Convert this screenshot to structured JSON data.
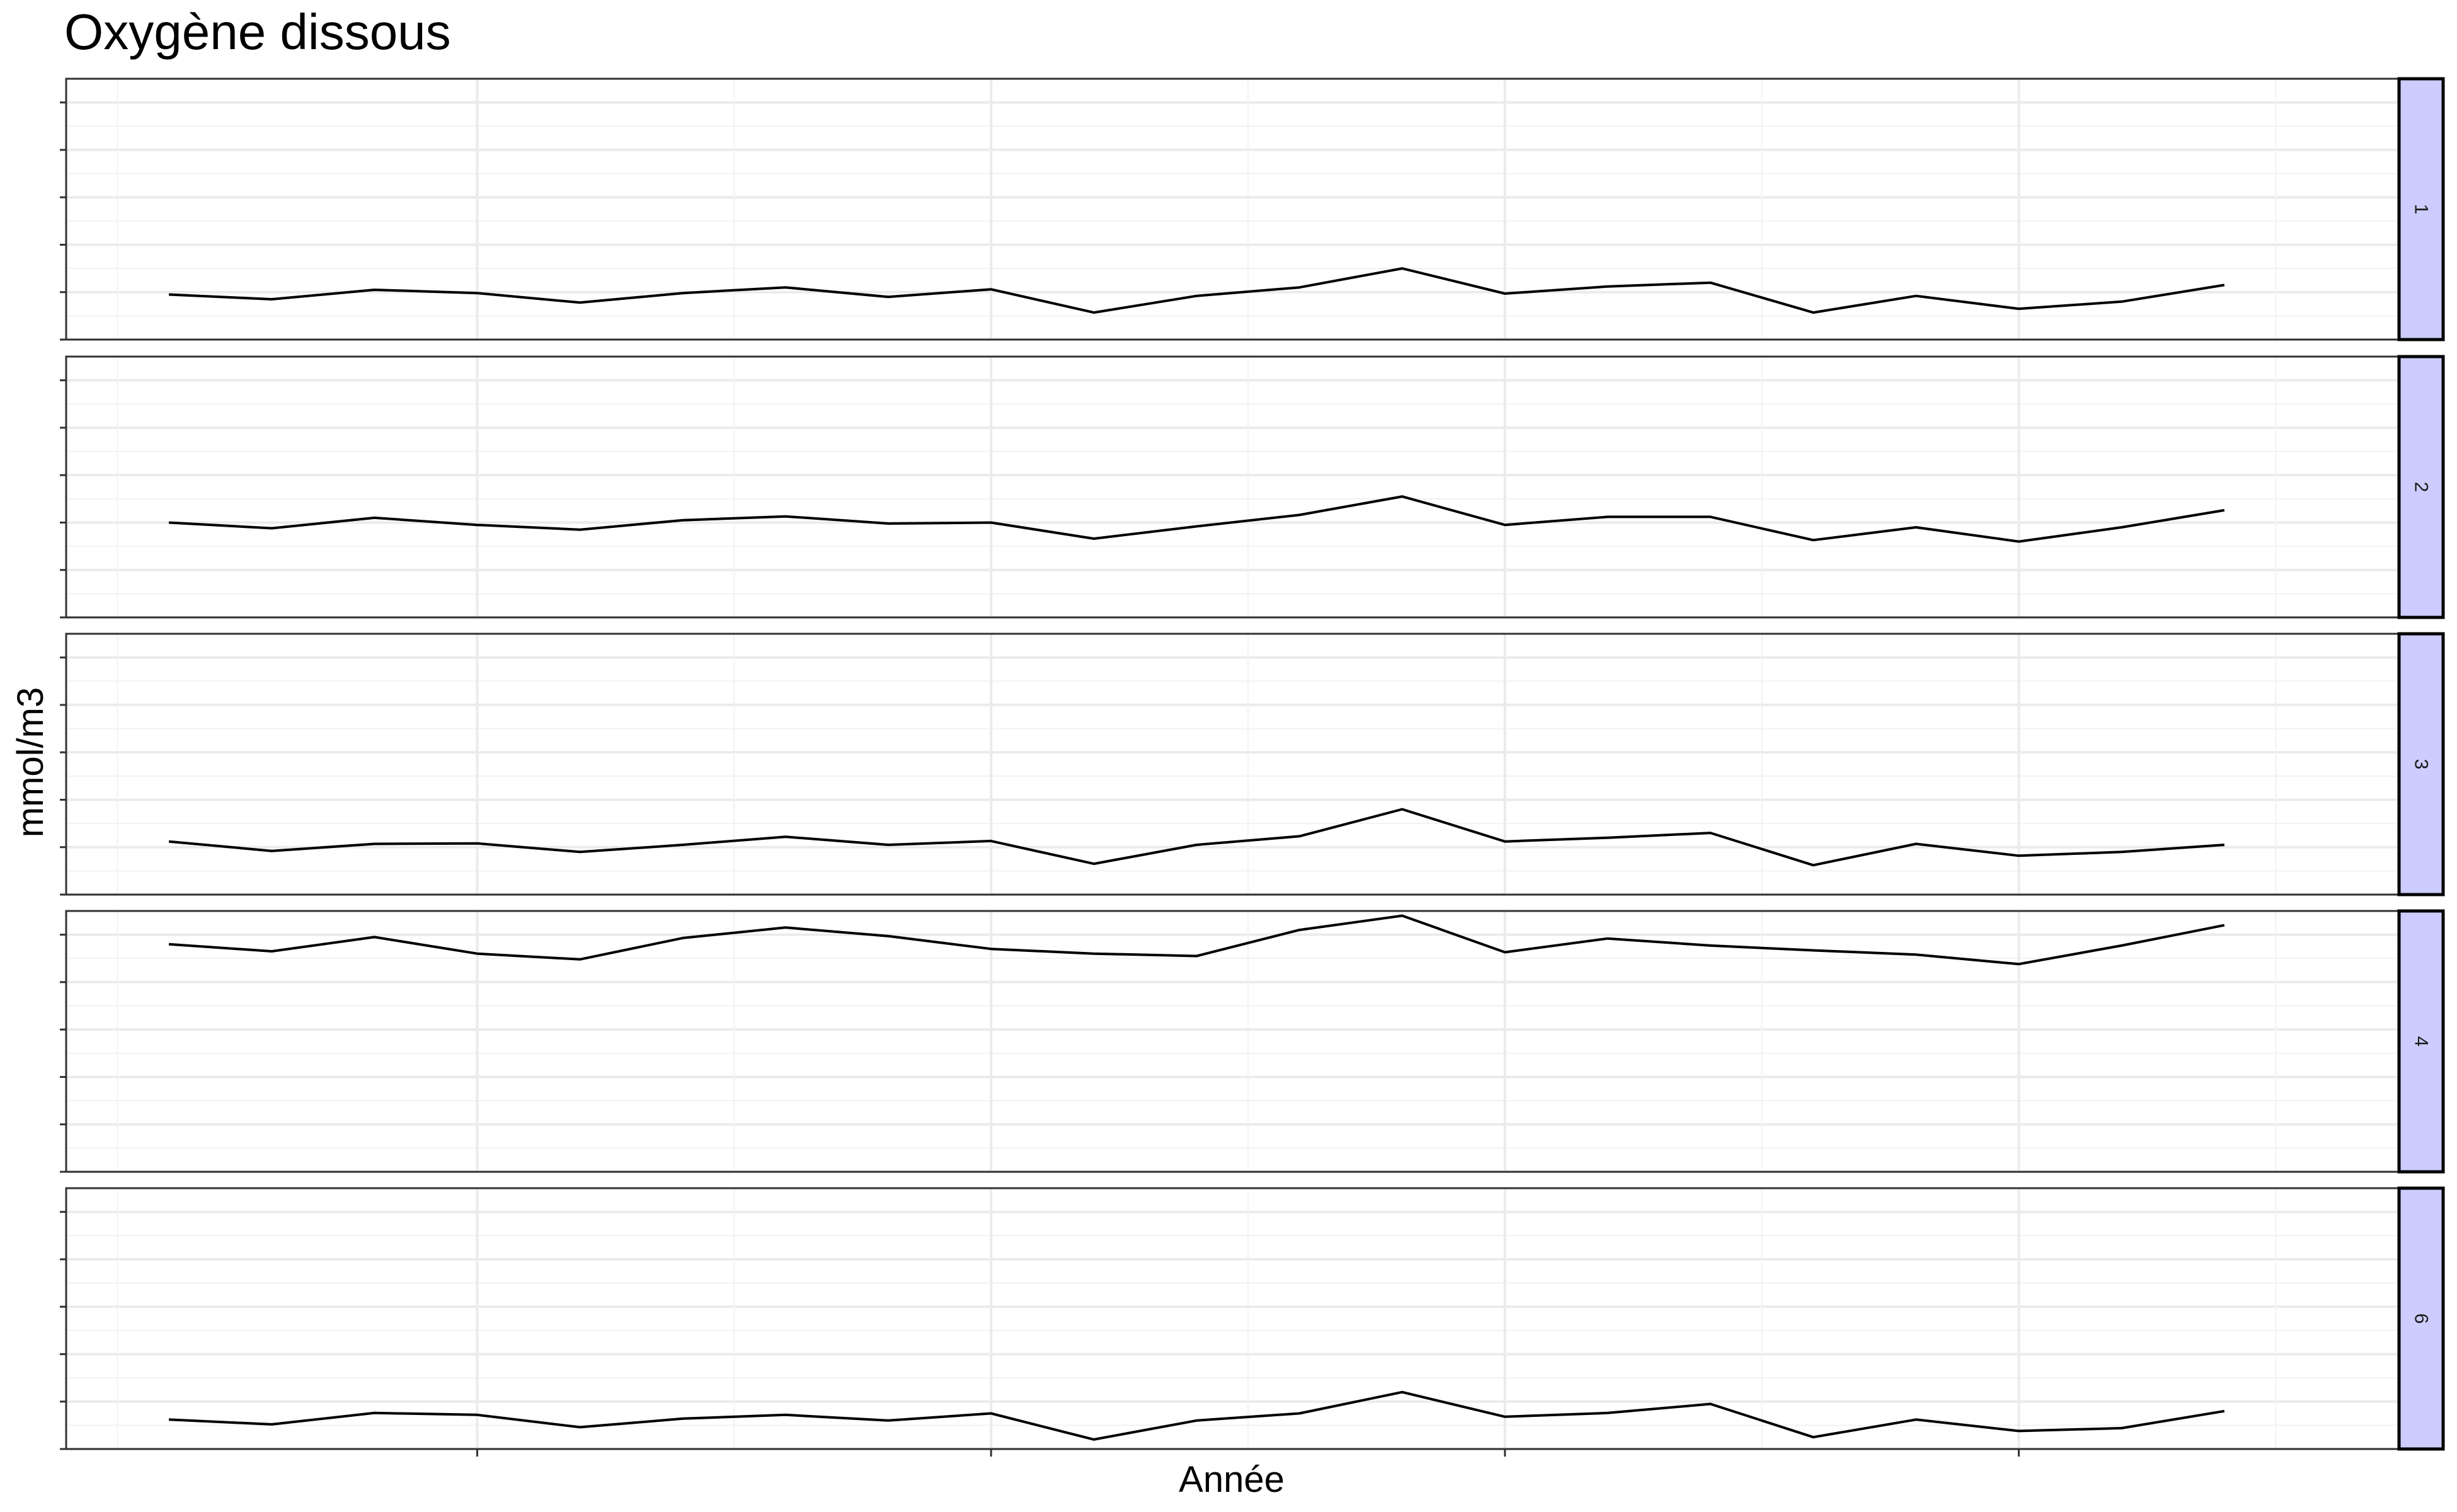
{
  "chart_data": {
    "type": "line",
    "title": "Oxygène dissous",
    "xlabel": "Année",
    "ylabel": "mmol/m3",
    "facet_layout": "rows",
    "strip_position": "right",
    "strip_color": "#ccccff",
    "line_color": "#000000",
    "grid": true,
    "x_tick_labels_visible": false,
    "y_tick_labels_visible": false,
    "x": [
      1,
      2,
      3,
      4,
      5,
      6,
      7,
      8,
      9,
      10,
      11,
      12,
      13,
      14,
      15,
      16,
      17,
      18,
      19,
      20,
      21
    ],
    "xlim": [
      0,
      22.7
    ],
    "ylim": [
      0,
      5.5
    ],
    "panels": [
      {
        "label": "1",
        "values": [
          0.95,
          0.85,
          1.05,
          0.98,
          0.78,
          0.98,
          1.1,
          0.9,
          1.06,
          0.57,
          0.92,
          1.1,
          1.5,
          0.97,
          1.12,
          1.2,
          0.57,
          0.92,
          0.65,
          0.8,
          1.15
        ]
      },
      {
        "label": "2",
        "values": [
          2.0,
          1.88,
          2.1,
          1.95,
          1.85,
          2.05,
          2.13,
          1.98,
          2.0,
          1.66,
          1.92,
          2.16,
          2.55,
          1.95,
          2.12,
          2.12,
          1.63,
          1.9,
          1.6,
          1.9,
          2.26
        ]
      },
      {
        "label": "3",
        "values": 1.12,
        "values_list": []
      },
      {
        "label": "4",
        "values": [
          4.8,
          4.65,
          4.95,
          4.6,
          4.48,
          4.93,
          5.15,
          4.97,
          4.7,
          4.6,
          4.55,
          5.1,
          5.4,
          4.63,
          4.92,
          4.77,
          4.67,
          4.58,
          4.38,
          4.77,
          5.2
        ]
      },
      {
        "label": "6",
        "values": [
          0.62,
          0.52,
          0.76,
          0.72,
          0.46,
          0.64,
          0.72,
          0.6,
          0.75,
          0.2,
          0.6,
          0.75,
          1.2,
          0.68,
          0.76,
          0.95,
          0.25,
          0.62,
          0.38,
          0.44,
          0.8
        ]
      }
    ]
  }
}
